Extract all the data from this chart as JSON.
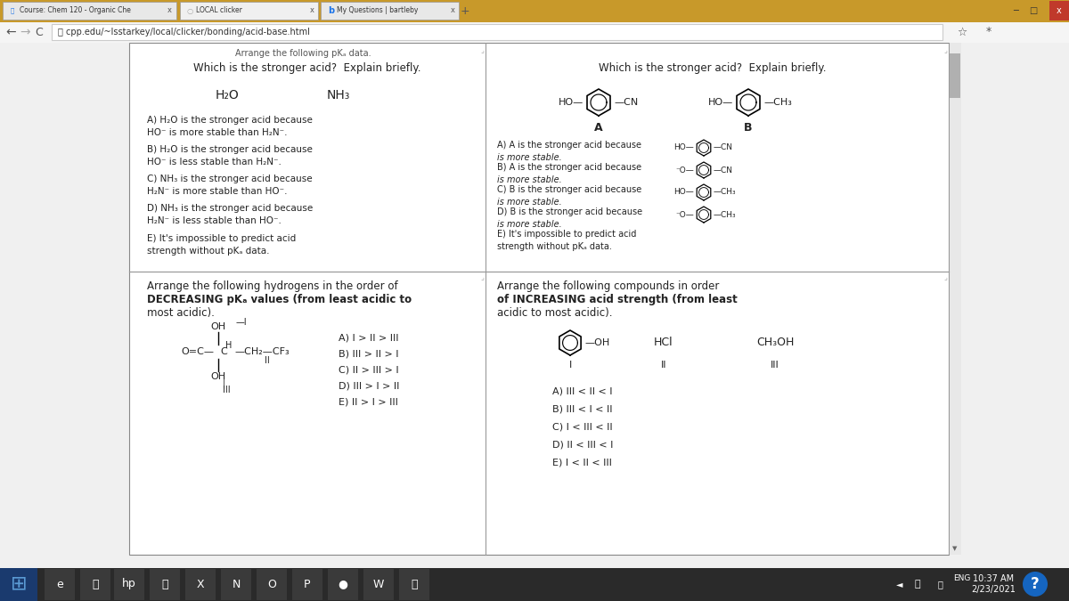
{
  "bg_color": "#f0f0f0",
  "browser_bar_color": "#C8992A",
  "tab_labels": [
    "Course: Chem 120 - Organic Che",
    "LOCAL clicker",
    "My Questions | bartleby"
  ],
  "url": "cpp.edu/~lsstarkey/local/clicker/bonding/acid-base.html",
  "content_bg": "#ffffff",
  "q1_title": "Which is the stronger acid?  Explain briefly.",
  "q1_mol1": "H₂O",
  "q1_mol2": "NH₃",
  "q1_a": "A) H₂O is the stronger acid because",
  "q1_a2": "HO⁻ is more stable than H₂N⁻.",
  "q1_b": "B) H₂O is the stronger acid because",
  "q1_b2": "HO⁻ is less stable than H₂N⁻.",
  "q1_c": "C) NH₃ is the stronger acid because",
  "q1_c2": "H₂N⁻ is more stable than HO⁻.",
  "q1_d": "D) NH₃ is the stronger acid because",
  "q1_d2": "H₂N⁻ is less stable than HO⁻.",
  "q1_e": "E) It's impossible to predict acid",
  "q1_e2": "strength without pKₐ data.",
  "q2_title": "Which is the stronger acid?  Explain briefly.",
  "q2_a_label": "A",
  "q2_b_label": "B",
  "q2_a1": "A) A is the stronger acid because",
  "q2_a2": "is more stable.",
  "q2_b1": "B) A is the stronger acid because",
  "q2_b2": "is more stable.",
  "q2_c1": "C) B is the stronger acid because",
  "q2_c2": "is more stable.",
  "q2_d1": "D) B is the stronger acid because",
  "q2_d2": "is more stable.",
  "q2_e1": "E) It's impossible to predict acid",
  "q2_e2": "strength without pKₐ data.",
  "q3_title1": "Arrange the following hydrogens in the order of",
  "q3_title2": "DECREASING pKₐ values (from least acidic to",
  "q3_title3": "most acidic).",
  "q3_a": "A) I > II > III",
  "q3_b": "B) III > II > I",
  "q3_c": "C) II > III > I",
  "q3_d": "D) III > I > II",
  "q3_e": "E) II > I > III",
  "q4_title1": "Arrange the following compounds in order",
  "q4_title2": "of INCREASING acid strength (from least",
  "q4_title3": "acidic to most acidic).",
  "q4_a": "A) III < II < I",
  "q4_b": "B) III < I < II",
  "q4_c": "C) I < III < II",
  "q4_d": "D) II < III < I",
  "q4_e": "E) I < II < III",
  "taskbar_time": "10:37 AM",
  "taskbar_date": "2/23/2021"
}
